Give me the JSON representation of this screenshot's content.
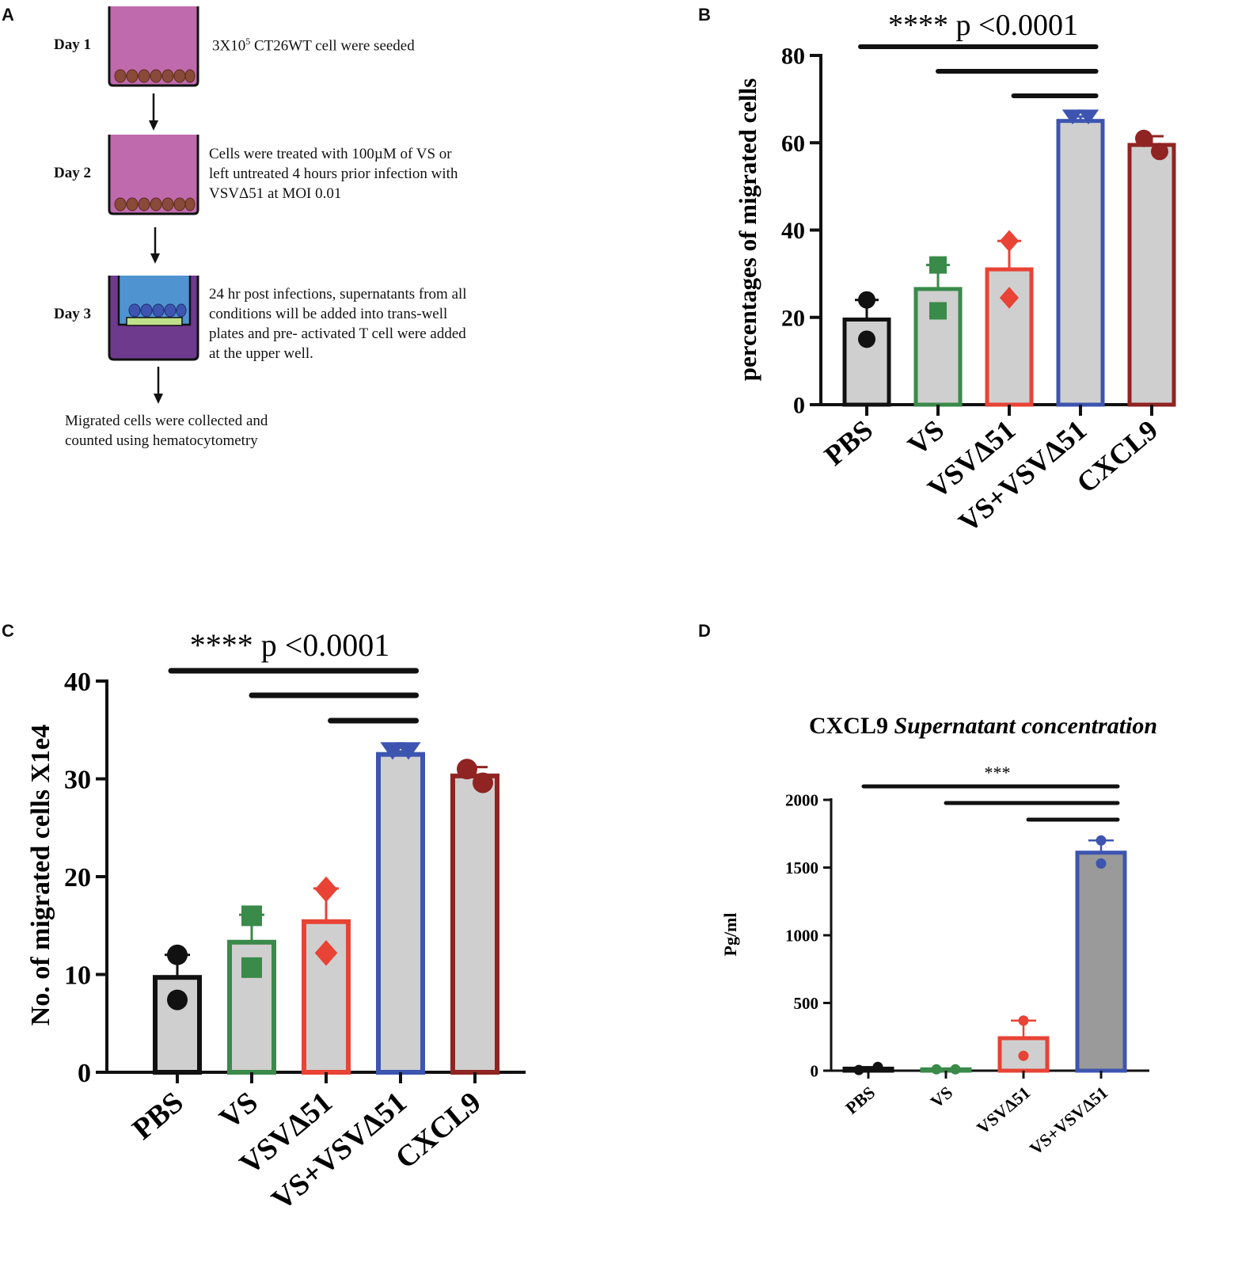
{
  "panel_labels": {
    "a": "A",
    "b": "B",
    "c": "C",
    "d": "D"
  },
  "panel_a": {
    "steps": [
      {
        "day": "Day 1",
        "text_before": "3X10",
        "superscript": "5",
        "text_after": " CT26WT cell were seeded"
      },
      {
        "day": "Day 2",
        "text": "Cells were treated with 100µM of VS or\nleft untreated 4 hours prior infection with\nVSVΔ51 at MOI 0.01"
      },
      {
        "day": "Day 3",
        "text": "24 hr post infections, supernatants from all\nconditions will be added into trans-well\nplates  and pre- activated T cell were added\nat the upper well."
      }
    ],
    "final_text": "Migrated cells were collected and\ncounted using hematocytometry"
  },
  "colors": {
    "black": "#111111",
    "green": "#3a8a4a",
    "red": "#e84335",
    "blue": "#3d55b0",
    "maroon": "#8f2422",
    "bar_fill": "#cfcfcf",
    "bar_fill_dark": "#9a9a9a",
    "well_purple": "#c06aae",
    "well_dark": "#6e3a8e",
    "insert_blue": "#4f94d0",
    "membrane_green": "#bfe08a"
  },
  "chart_data": [
    {
      "id": "B",
      "type": "bar",
      "title": "",
      "significance": "**** p <0.0001",
      "categories": [
        "PBS",
        "VS",
        "VSVΔ51",
        "VS+VSVΔ51",
        "CXCL9"
      ],
      "values": [
        19.5,
        26.5,
        31,
        65,
        59.5
      ],
      "error": [
        4.5,
        5.5,
        6.5,
        1,
        2
      ],
      "points": [
        [
          24,
          15
        ],
        [
          32,
          21.5
        ],
        [
          37.5,
          24.5
        ],
        [
          66,
          66
        ],
        [
          61,
          58
        ]
      ],
      "markers": [
        "circle",
        "square",
        "diamond",
        "triangle-down",
        "circle"
      ],
      "series_colors": [
        "#111111",
        "#3a8a4a",
        "#e84335",
        "#3d55b0",
        "#8f2422"
      ],
      "xlabel": "",
      "ylabel": "percentages of migrated cells",
      "ylim": [
        0,
        80
      ],
      "yticks": [
        "0",
        "20",
        "40",
        "60",
        "80"
      ],
      "comparisons": [
        [
          0,
          3
        ],
        [
          1,
          3
        ],
        [
          2,
          3
        ]
      ]
    },
    {
      "id": "C",
      "type": "bar",
      "title": "",
      "significance": "**** p <0.0001",
      "categories": [
        "PBS",
        "VS",
        "VSVΔ51",
        "VS+VSVΔ51",
        "CXCL9"
      ],
      "values": [
        9.7,
        13.3,
        15.4,
        32.5,
        30.3
      ],
      "error": [
        2.3,
        2.8,
        3.4,
        0.3,
        0.9
      ],
      "points": [
        [
          12,
          7.4
        ],
        [
          16,
          10.7
        ],
        [
          18.7,
          12.2
        ],
        [
          32.9,
          32.9
        ],
        [
          31,
          29.6
        ]
      ],
      "markers": [
        "circle",
        "square",
        "diamond",
        "triangle-down",
        "circle"
      ],
      "series_colors": [
        "#111111",
        "#3a8a4a",
        "#e84335",
        "#3d55b0",
        "#8f2422"
      ],
      "xlabel": "",
      "ylabel": "No. of migrated cells X1e4",
      "ylim": [
        0,
        40
      ],
      "yticks": [
        "0",
        "10",
        "20",
        "30",
        "40"
      ],
      "comparisons": [
        [
          0,
          3
        ],
        [
          1,
          3
        ],
        [
          2,
          3
        ]
      ]
    },
    {
      "id": "D",
      "type": "bar",
      "title": "CXCL9",
      "title_italic": "Supernatant concentration",
      "significance": "***",
      "categories": [
        "PBS",
        "VS",
        "VSVΔ51",
        "VS+VSVΔ51"
      ],
      "values": [
        15,
        10,
        240,
        1610
      ],
      "error": [
        12,
        5,
        130,
        90
      ],
      "points": [
        [
          5,
          28
        ],
        [
          10,
          10
        ],
        [
          370,
          110
        ],
        [
          1700,
          1530
        ]
      ],
      "markers": [
        "circle",
        "circle",
        "circle",
        "circle"
      ],
      "series_colors": [
        "#111111",
        "#3a8a4a",
        "#e84335",
        "#3d55b0"
      ],
      "xlabel": "",
      "ylabel": "Pg/ml",
      "ylim": [
        0,
        2000
      ],
      "yticks": [
        "0",
        "500",
        "1000",
        "1500",
        "2000"
      ],
      "comparisons": [
        [
          0,
          3
        ],
        [
          1,
          3
        ],
        [
          2,
          3
        ]
      ]
    }
  ]
}
